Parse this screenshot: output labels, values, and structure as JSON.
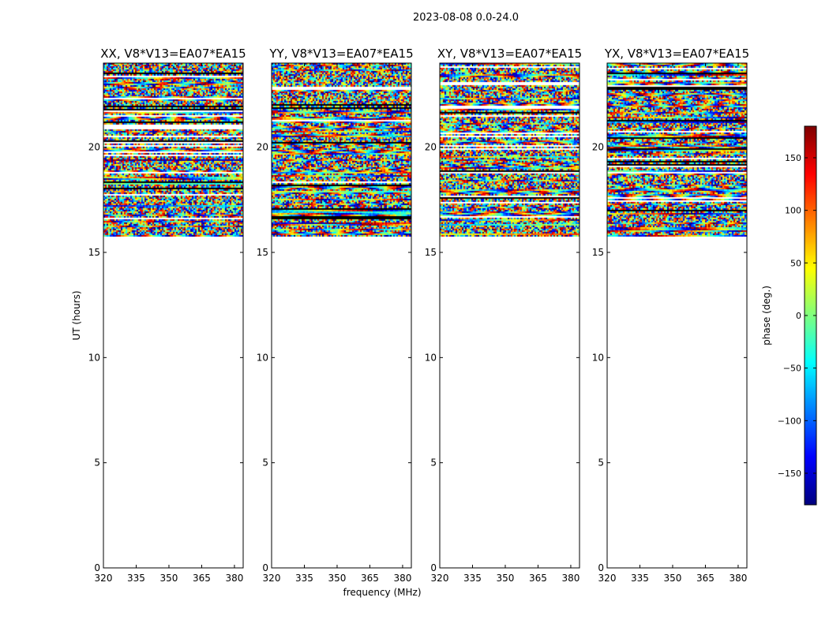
{
  "figure": {
    "title": "2023-08-08 0.0-24.0"
  },
  "colorbar": {
    "label": "phase (deg.)",
    "range": [
      -180,
      180
    ],
    "ticks": [
      -150,
      -100,
      -50,
      0,
      50,
      100,
      150
    ],
    "tick_labels": [
      "−150",
      "−100",
      "−50",
      "0",
      "50",
      "100",
      "150"
    ],
    "colors": [
      "#00007f",
      "#0000ff",
      "#007fff",
      "#00ffff",
      "#7fff7f",
      "#ffff00",
      "#ff7f00",
      "#ff0000",
      "#7f0000"
    ]
  },
  "chart_data": [
    {
      "type": "heatmap",
      "title": "XX, V8*V13=EA07*EA15",
      "xlabel": "",
      "ylabel": "UT (hours)",
      "xlim": [
        320,
        384
      ],
      "ylim": [
        0,
        24
      ],
      "xticks": [
        320,
        335,
        350,
        365,
        380
      ],
      "yticks": [
        0,
        5,
        10,
        15,
        20
      ],
      "data_ut_range": [
        15.75,
        24.0
      ],
      "value_range_deg": [
        -180,
        180
      ],
      "seed": 7
    },
    {
      "type": "heatmap",
      "title": "YY, V8*V13=EA07*EA15",
      "xlabel": "frequency (MHz)",
      "ylabel": "",
      "xlim": [
        320,
        384
      ],
      "ylim": [
        0,
        24
      ],
      "xticks": [
        320,
        335,
        350,
        365,
        380
      ],
      "yticks": [
        0,
        5,
        10,
        15,
        20
      ],
      "data_ut_range": [
        15.75,
        24.0
      ],
      "value_range_deg": [
        -180,
        180
      ],
      "seed": 13
    },
    {
      "type": "heatmap",
      "title": "XY, V8*V13=EA07*EA15",
      "xlabel": "",
      "ylabel": "",
      "xlim": [
        320,
        384
      ],
      "ylim": [
        0,
        24
      ],
      "xticks": [
        320,
        335,
        350,
        365,
        380
      ],
      "yticks": [
        0,
        5,
        10,
        15,
        20
      ],
      "data_ut_range": [
        15.75,
        24.0
      ],
      "value_range_deg": [
        -180,
        180
      ],
      "seed": 21
    },
    {
      "type": "heatmap",
      "title": "YX, V8*V13=EA07*EA15",
      "xlabel": "",
      "ylabel": "",
      "xlim": [
        320,
        384
      ],
      "ylim": [
        0,
        24
      ],
      "xticks": [
        320,
        335,
        350,
        365,
        380
      ],
      "yticks": [
        0,
        5,
        10,
        15,
        20
      ],
      "data_ut_range": [
        15.75,
        24.0
      ],
      "value_range_deg": [
        -180,
        180
      ],
      "seed": 33
    }
  ]
}
